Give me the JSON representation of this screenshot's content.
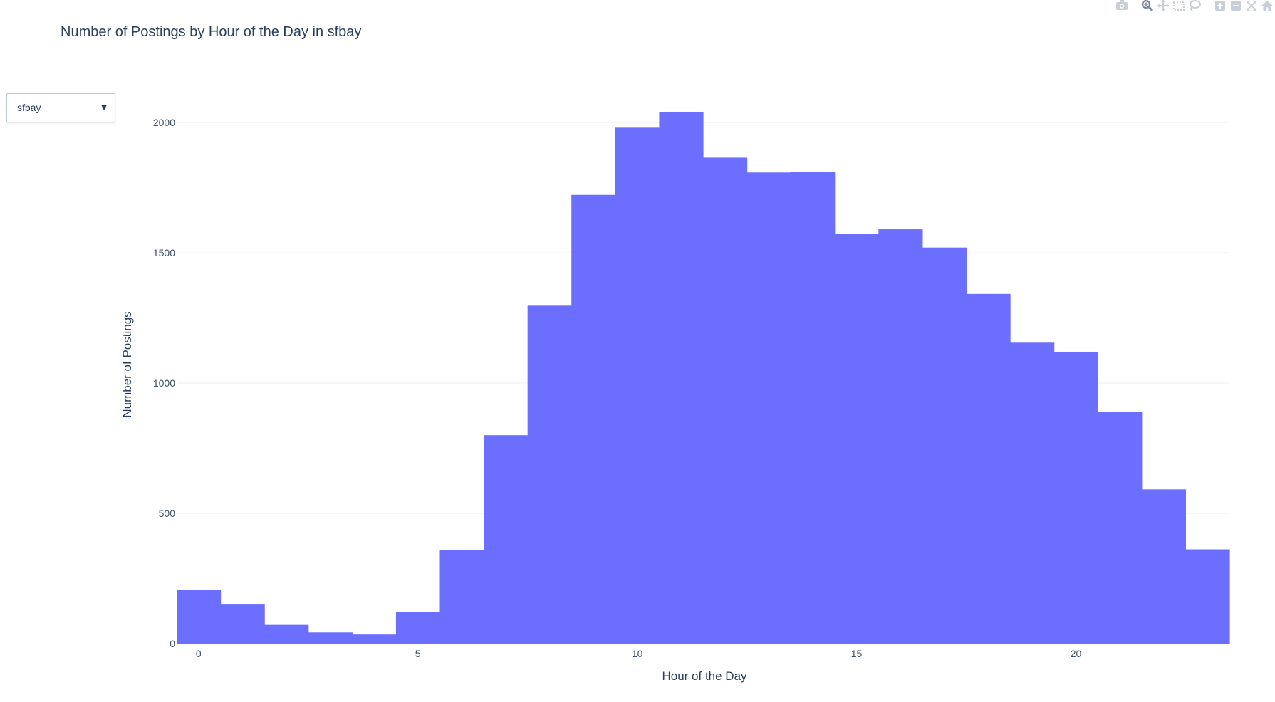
{
  "title": "Number of Postings by Hour of the Day in sfbay",
  "dropdown": {
    "selected": "sfbay"
  },
  "modebar": {
    "icons": [
      "camera-icon",
      "zoom-icon",
      "pan-icon",
      "box-select-icon",
      "lasso-select-icon",
      "zoom-in-icon",
      "zoom-out-icon",
      "autoscale-icon",
      "home-icon"
    ]
  },
  "colors": {
    "bar": "#6c6efe",
    "grid": "#ebedf0",
    "text": "#2a3f5f",
    "tick": "#3e4f66"
  },
  "chart_data": {
    "type": "bar",
    "title": "Number of Postings by Hour of the Day in sfbay",
    "xlabel": "Hour of the Day",
    "ylabel": "Number of Postings",
    "x": [
      0,
      1,
      2,
      3,
      4,
      5,
      6,
      7,
      8,
      9,
      10,
      11,
      12,
      13,
      14,
      15,
      16,
      17,
      18,
      19,
      20,
      21,
      22,
      23
    ],
    "values": [
      205,
      150,
      72,
      43,
      35,
      122,
      360,
      800,
      1297,
      1722,
      1980,
      2040,
      1865,
      1808,
      1810,
      1572,
      1590,
      1520,
      1342,
      1155,
      1120,
      888,
      592,
      362
    ],
    "xlim": [
      -0.5,
      23.5
    ],
    "ylim": [
      0,
      2040
    ],
    "xticks": [
      0,
      5,
      10,
      15,
      20
    ],
    "yticks": [
      0,
      500,
      1000,
      1500,
      2000
    ],
    "grid": true,
    "bargap": 0
  }
}
